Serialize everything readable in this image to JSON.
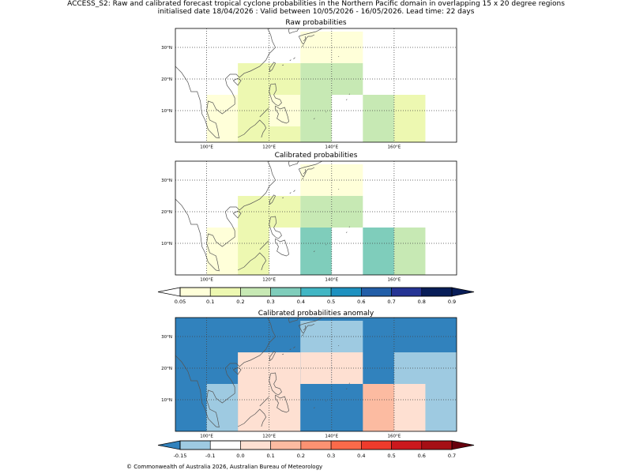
{
  "header": {
    "line1": "ACCESS_S2: Raw and calibrated forecast tropical cyclone probabilities in the Northern Pacific domain in overlapping 15 x 20 degree regions",
    "line2": "initialised date 18/04/2026 :  Valid between 10/05/2026 - 16/05/2026. Lead time: 22 days"
  },
  "footer": {
    "copyright": "© Commonwealth of Australia 2026, Australian Bureau of Meteorology"
  },
  "colors": {
    "prob": [
      "#ffffd9",
      "#edf8b1",
      "#c7e9b4",
      "#7fcdbb",
      "#41b6c4",
      "#1d91c0",
      "#225ea8",
      "#253494",
      "#081d58"
    ],
    "prob_under": "#ffffff",
    "prob_over": "#081d58",
    "anom": [
      "#9ecae1",
      "#ffffff",
      "#fee0d2",
      "#fcbba1",
      "#fc9272",
      "#fb6a4a",
      "#ef3b2c",
      "#cb181d",
      "#a50f15"
    ],
    "anom_under": "#3182bd",
    "anom_over": "#67000d",
    "coast": "#555555"
  },
  "chart_data": [
    {
      "type": "heatmap",
      "title": "Raw probabilities",
      "xlim": [
        90,
        180
      ],
      "ylim": [
        0,
        36
      ],
      "xticks": [
        100,
        120,
        140,
        160
      ],
      "xtick_labels": [
        "100°E",
        "120°E",
        "140°E",
        "160°E"
      ],
      "yticks": [
        10,
        20,
        30
      ],
      "ytick_labels": [
        "10°N",
        "20°N",
        "30°N"
      ],
      "cells": [
        {
          "lon": [
            110,
            130
          ],
          "lat": [
            0,
            15
          ],
          "value": 0.07
        },
        {
          "lon": [
            100,
            110
          ],
          "lat": [
            0,
            15
          ],
          "value": 0.07
        },
        {
          "lon": [
            110,
            120
          ],
          "lat": [
            0,
            15
          ],
          "value": 0.15
        },
        {
          "lon": [
            120,
            130
          ],
          "lat": [
            0,
            5
          ],
          "value": 0.15
        },
        {
          "lon": [
            130,
            140
          ],
          "lat": [
            0,
            15
          ],
          "value": 0.22
        },
        {
          "lon": [
            130,
            150
          ],
          "lat": [
            25,
            35
          ],
          "value": 0.07
        },
        {
          "lon": [
            140,
            150
          ],
          "lat": [
            15,
            25
          ],
          "value": 0.25
        },
        {
          "lon": [
            130,
            140
          ],
          "lat": [
            15,
            25
          ],
          "value": 0.25
        },
        {
          "lon": [
            150,
            160
          ],
          "lat": [
            0,
            15
          ],
          "value": 0.25
        },
        {
          "lon": [
            160,
            170
          ],
          "lat": [
            0,
            15
          ],
          "value": 0.15
        },
        {
          "lon": [
            110,
            130
          ],
          "lat": [
            15,
            25
          ],
          "value": 0.15
        }
      ]
    },
    {
      "type": "heatmap",
      "title": "Calibrated probabilities",
      "xlim": [
        90,
        180
      ],
      "ylim": [
        0,
        36
      ],
      "xticks": [
        100,
        120,
        140,
        160
      ],
      "xtick_labels": [
        "100°E",
        "120°E",
        "140°E",
        "160°E"
      ],
      "yticks": [
        10,
        20,
        30
      ],
      "ytick_labels": [
        "10°N",
        "20°N",
        "30°N"
      ],
      "cells": [
        {
          "lon": [
            100,
            110
          ],
          "lat": [
            0,
            15
          ],
          "value": 0.07
        },
        {
          "lon": [
            110,
            120
          ],
          "lat": [
            0,
            15
          ],
          "value": 0.15
        },
        {
          "lon": [
            130,
            150
          ],
          "lat": [
            25,
            35
          ],
          "value": 0.07
        },
        {
          "lon": [
            140,
            150
          ],
          "lat": [
            15,
            25
          ],
          "value": 0.25
        },
        {
          "lon": [
            130,
            140
          ],
          "lat": [
            15,
            25
          ],
          "value": 0.25
        },
        {
          "lon": [
            150,
            160
          ],
          "lat": [
            0,
            15
          ],
          "value": 0.35
        },
        {
          "lon": [
            160,
            170
          ],
          "lat": [
            0,
            15
          ],
          "value": 0.25
        },
        {
          "lon": [
            110,
            130
          ],
          "lat": [
            15,
            25
          ],
          "value": 0.15
        },
        {
          "lon": [
            130,
            140
          ],
          "lat": [
            0,
            15
          ],
          "value": 0.35
        }
      ]
    },
    {
      "type": "heatmap",
      "title": "Calibrated probabilities anomaly",
      "xlim": [
        90,
        180
      ],
      "ylim": [
        0,
        36
      ],
      "xticks": [
        100,
        120,
        140,
        160
      ],
      "xtick_labels": [
        "100°E",
        "120°E",
        "140°E",
        "160°E"
      ],
      "yticks": [
        10,
        20,
        30
      ],
      "ytick_labels": [
        "10°N",
        "20°N",
        "30°N"
      ],
      "cells": [
        {
          "lon": [
            90,
            180
          ],
          "lat": [
            0,
            36
          ],
          "value": -0.2
        },
        {
          "lon": [
            100,
            110
          ],
          "lat": [
            0,
            15
          ],
          "value": -0.12
        },
        {
          "lon": [
            110,
            130
          ],
          "lat": [
            0,
            15
          ],
          "value": 0.0
        },
        {
          "lon": [
            110,
            130
          ],
          "lat": [
            15,
            25
          ],
          "value": 0.0
        },
        {
          "lon": [
            130,
            140
          ],
          "lat": [
            15,
            25
          ],
          "value": 0.05
        },
        {
          "lon": [
            140,
            150
          ],
          "lat": [
            15,
            25
          ],
          "value": 0.05
        },
        {
          "lon": [
            130,
            150
          ],
          "lat": [
            25,
            30
          ],
          "value": -0.12
        },
        {
          "lon": [
            130,
            150
          ],
          "lat": [
            30,
            35
          ],
          "value": -0.12
        },
        {
          "lon": [
            150,
            160
          ],
          "lat": [
            0,
            15
          ],
          "value": 0.15
        },
        {
          "lon": [
            160,
            180
          ],
          "lat": [
            0,
            15
          ],
          "value": 0.0
        },
        {
          "lon": [
            160,
            180
          ],
          "lat": [
            15,
            25
          ],
          "value": -0.12
        },
        {
          "lon": [
            170,
            180
          ],
          "lat": [
            0,
            15
          ],
          "value": -0.12
        }
      ]
    }
  ],
  "colorbars": [
    {
      "name": "probability-colorbar",
      "boundaries": [
        0.05,
        0.1,
        0.2,
        0.3,
        0.4,
        0.5,
        0.6,
        0.7,
        0.8,
        0.9
      ],
      "labels": [
        "0.05",
        "0.1",
        "0.2",
        "0.3",
        "0.4",
        "0.5",
        "0.6",
        "0.7",
        "0.8",
        "0.9"
      ]
    },
    {
      "name": "anomaly-colorbar",
      "boundaries": [
        -0.15,
        -0.1,
        0.0,
        0.1,
        0.2,
        0.3,
        0.4,
        0.5,
        0.6,
        0.7
      ],
      "labels": [
        "-0.15",
        "-0.1",
        "0.0",
        "0.1",
        "0.2",
        "0.3",
        "0.4",
        "0.5",
        "0.6",
        "0.7"
      ]
    }
  ]
}
